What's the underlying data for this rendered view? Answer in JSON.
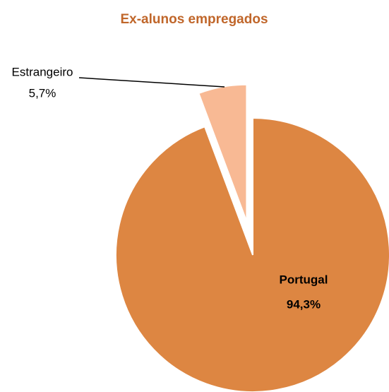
{
  "chart_data": {
    "type": "pie",
    "title": "Ex-alunos empregados",
    "categories": [
      "Portugal",
      "Estrangeiro"
    ],
    "values": [
      94.3,
      5.7
    ],
    "value_labels": [
      "94,3%",
      "5,7%"
    ],
    "colors": [
      "#dd8642",
      "#f8b994"
    ],
    "exploded": [
      false,
      true
    ]
  }
}
